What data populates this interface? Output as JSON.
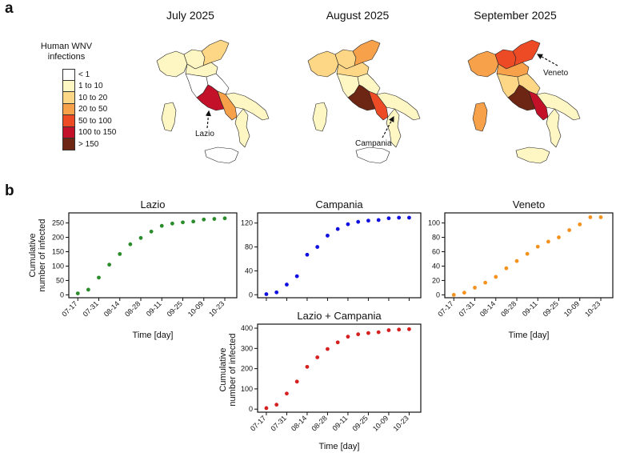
{
  "panel_a": {
    "letter": "a",
    "legend": {
      "title": "Human WNV infections",
      "items": [
        {
          "label": "< 1",
          "color": "#ffffff"
        },
        {
          "label": "1 to 10",
          "color": "#fef7c3"
        },
        {
          "label": "10 to 20",
          "color": "#fdd785"
        },
        {
          "label": "20 to 50",
          "color": "#f8a14b"
        },
        {
          "label": "50 to 100",
          "color": "#ec4b25"
        },
        {
          "label": "100 to 150",
          "color": "#c4112a"
        },
        {
          "label": "> 150",
          "color": "#6e2614"
        }
      ]
    },
    "maps": [
      {
        "title": "July 2025",
        "annotation": "Lazio"
      },
      {
        "title": "August 2025",
        "annotation": "Campania"
      },
      {
        "title": "September 2025",
        "annotation": "Veneto"
      }
    ]
  },
  "panel_b": {
    "letter": "b"
  },
  "chart_data": [
    {
      "type": "scatter",
      "title": "Lazio",
      "xlabel": "Time [day]",
      "ylabel": "Cumulative number of infected",
      "color": "#2a8c2a",
      "x_ticks": [
        "07-17",
        "07-31",
        "08-14",
        "08-28",
        "09-11",
        "09-25",
        "10-09",
        "10-23"
      ],
      "y_ticks": [
        0,
        50,
        100,
        150,
        200,
        250
      ],
      "ylim": [
        -10,
        285
      ],
      "x": [
        "07-17",
        "07-24",
        "07-31",
        "08-07",
        "08-14",
        "08-21",
        "08-28",
        "09-04",
        "09-11",
        "09-18",
        "09-25",
        "10-02",
        "10-09",
        "10-16",
        "10-23"
      ],
      "y": [
        5,
        18,
        60,
        105,
        142,
        176,
        198,
        220,
        240,
        248,
        252,
        255,
        262,
        264,
        266
      ]
    },
    {
      "type": "scatter",
      "title": "Campania",
      "xlabel": "",
      "ylabel": "",
      "color": "#1010e0",
      "x_ticks": [],
      "y_ticks": [
        0,
        40,
        80,
        120
      ],
      "ylim": [
        -5,
        137
      ],
      "x": [
        "07-17",
        "07-24",
        "07-31",
        "08-07",
        "08-14",
        "08-21",
        "08-28",
        "09-04",
        "09-11",
        "09-18",
        "09-25",
        "10-02",
        "10-09",
        "10-16",
        "10-23"
      ],
      "y": [
        1,
        4,
        17,
        31,
        67,
        80,
        99,
        110,
        118,
        122,
        124,
        125,
        128,
        129,
        129
      ]
    },
    {
      "type": "scatter",
      "title": "Veneto",
      "xlabel": "Time [day]",
      "ylabel": "",
      "color": "#f5921e",
      "x_ticks": [
        "07-17",
        "07-31",
        "08-14",
        "08-28",
        "09-11",
        "09-25",
        "10-09",
        "10-23"
      ],
      "y_ticks": [
        0,
        20,
        40,
        60,
        80,
        100
      ],
      "ylim": [
        -4,
        114
      ],
      "x": [
        "07-17",
        "07-24",
        "07-31",
        "08-07",
        "08-14",
        "08-21",
        "08-28",
        "09-04",
        "09-11",
        "09-18",
        "09-25",
        "10-02",
        "10-09",
        "10-16",
        "10-23"
      ],
      "y": [
        0,
        3,
        10,
        17,
        25,
        37,
        47,
        57,
        67,
        74,
        80,
        90,
        98,
        108,
        108
      ]
    },
    {
      "type": "scatter",
      "title": "Lazio + Campania",
      "xlabel": "Time [day]",
      "ylabel": "Cumulative number of infected",
      "color": "#d62020",
      "x_ticks": [
        "07-17",
        "07-31",
        "08-14",
        "08-28",
        "09-11",
        "09-25",
        "10-09",
        "10-23"
      ],
      "y_ticks": [
        0,
        100,
        200,
        300,
        400
      ],
      "ylim": [
        -15,
        420
      ],
      "x": [
        "07-17",
        "07-24",
        "07-31",
        "08-07",
        "08-14",
        "08-21",
        "08-28",
        "09-04",
        "09-11",
        "09-18",
        "09-25",
        "10-02",
        "10-09",
        "10-16",
        "10-23"
      ],
      "y": [
        5,
        22,
        77,
        136,
        209,
        256,
        297,
        330,
        358,
        370,
        376,
        380,
        390,
        393,
        395
      ]
    }
  ]
}
